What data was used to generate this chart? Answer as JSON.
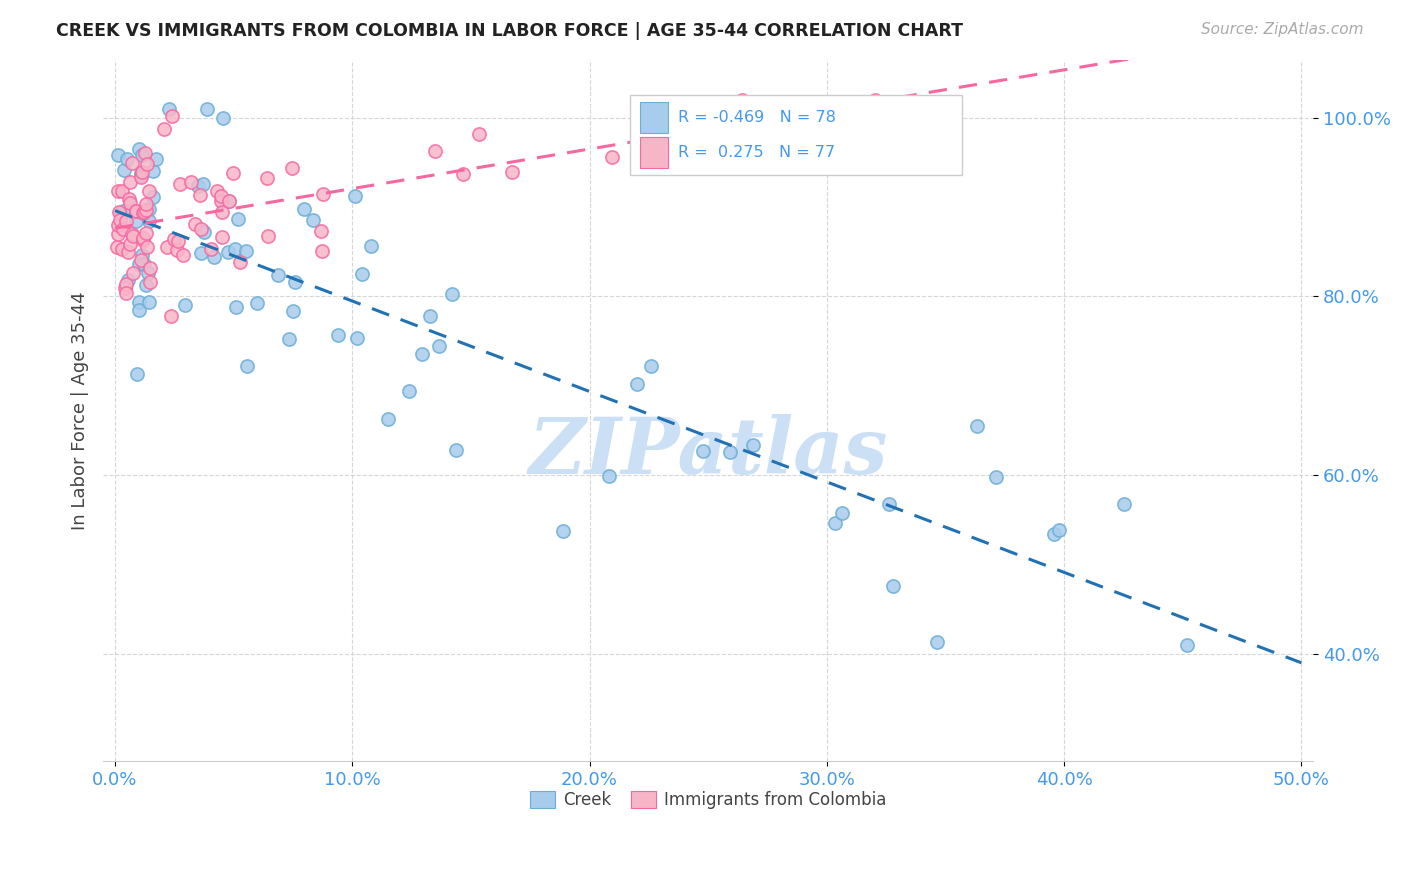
{
  "title": "CREEK VS IMMIGRANTS FROM COLOMBIA IN LABOR FORCE | AGE 35-44 CORRELATION CHART",
  "source": "Source: ZipAtlas.com",
  "ylabel": "In Labor Force | Age 35-44",
  "xlim": [
    -0.005,
    0.505
  ],
  "ylim": [
    0.28,
    1.065
  ],
  "xtick_vals": [
    0.0,
    0.1,
    0.2,
    0.3,
    0.4,
    0.5
  ],
  "ytick_vals": [
    0.4,
    0.6,
    0.8,
    1.0
  ],
  "ytick_labels": [
    "40.0%",
    "60.0%",
    "80.0%",
    "100.0%"
  ],
  "xtick_labels": [
    "0.0%",
    "10.0%",
    "20.0%",
    "30.0%",
    "40.0%",
    "50.0%"
  ],
  "creek_color": "#a8ccec",
  "colombia_color": "#f7b6c8",
  "creek_edge_color": "#6baed6",
  "colombia_edge_color": "#f768a1",
  "creek_R": -0.469,
  "creek_N": 78,
  "colombia_R": 0.275,
  "colombia_N": 77,
  "creek_line_color": "#2171b5",
  "colombia_line_color": "#f768a1",
  "tick_color": "#4499ee",
  "watermark": "ZIPatlas",
  "watermark_color": "#cce0f5",
  "legend_box_color": "#f5f5f5",
  "legend_edge_color": "#cccccc",
  "creek_legend_color": "#a8ccec",
  "colombia_legend_color": "#f7b6c8"
}
